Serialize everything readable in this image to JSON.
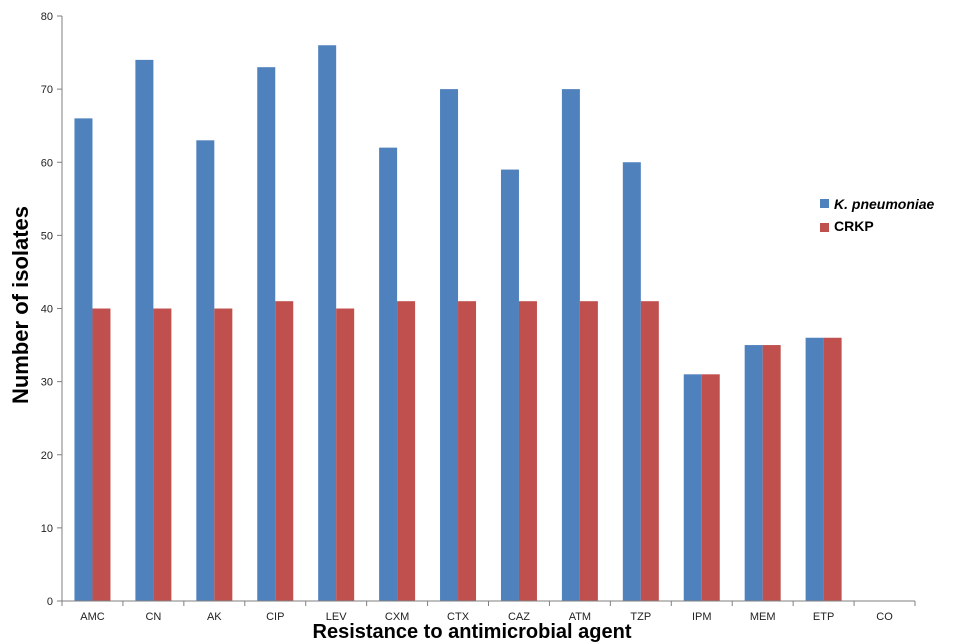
{
  "chart_data": {
    "type": "bar",
    "categories": [
      "AMC",
      "CN",
      "AK",
      "CIP",
      "LEV",
      "CXM",
      "CTX",
      "CAZ",
      "ATM",
      "TZP",
      "IPM",
      "MEM",
      "ETP",
      "CO"
    ],
    "series": [
      {
        "name": "K. pneumoniae",
        "color": "#4F81BD",
        "values": [
          66,
          74,
          63,
          73,
          76,
          62,
          70,
          59,
          70,
          60,
          31,
          35,
          36,
          0
        ]
      },
      {
        "name": "CRKP",
        "color": "#C0504D",
        "values": [
          40,
          40,
          40,
          41,
          40,
          41,
          41,
          41,
          41,
          41,
          31,
          35,
          36,
          0
        ]
      }
    ],
    "xlabel": "Resistance to antimicrobial agent",
    "ylabel": "Number of isolates",
    "ylim": [
      0,
      80
    ],
    "yticks": [
      "0",
      "10",
      "20",
      "30",
      "40",
      "50",
      "60",
      "70",
      "80"
    ],
    "grid": false,
    "legend_position": "right"
  }
}
